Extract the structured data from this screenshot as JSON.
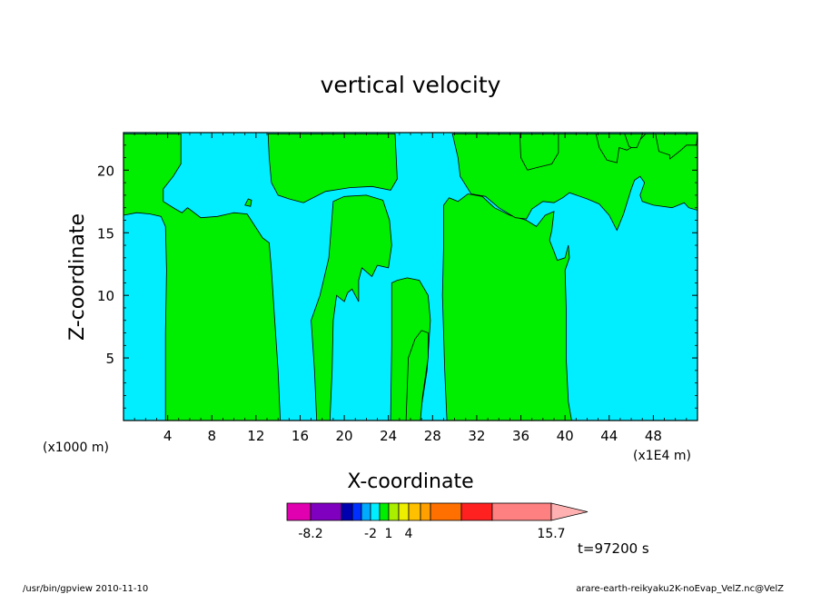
{
  "chart_data": {
    "type": "heatmap",
    "title": "vertical velocity",
    "xlabel": "X-coordinate",
    "ylabel": "Z-coordinate",
    "xlim": [
      0,
      52
    ],
    "ylim": [
      0,
      23
    ],
    "x_scale_label": "(x1000 m)",
    "x_scale_label_right": "(x1E4 m)",
    "x_ticks": [
      4,
      8,
      12,
      16,
      20,
      24,
      28,
      32,
      36,
      40,
      44,
      48
    ],
    "y_ticks": [
      5,
      10,
      15,
      20
    ],
    "background_color": "#00eeff",
    "positive_color": "#00ee00",
    "positive_regions": [
      {
        "points": [
          [
            0,
            16.4
          ],
          [
            1.2,
            16.6
          ],
          [
            2.4,
            16.5
          ],
          [
            3.4,
            16.3
          ],
          [
            3.8,
            15.5
          ],
          [
            3.9,
            12
          ],
          [
            3.8,
            7
          ],
          [
            3.8,
            0
          ],
          [
            14.2,
            0
          ],
          [
            14.0,
            4
          ],
          [
            13.7,
            8
          ],
          [
            13.4,
            12
          ],
          [
            13.2,
            14.2
          ],
          [
            12.6,
            14.6
          ],
          [
            11.2,
            16.5
          ],
          [
            10.0,
            16.6
          ],
          [
            8.5,
            16.3
          ],
          [
            7.0,
            16.2
          ],
          [
            5.8,
            17.0
          ],
          [
            5.3,
            16.6
          ],
          [
            4.7,
            16.9
          ],
          [
            3.6,
            17.5
          ],
          [
            3.6,
            18.5
          ],
          [
            4.5,
            19.5
          ],
          [
            5.2,
            20.5
          ],
          [
            5.2,
            22.9
          ],
          [
            0,
            22.9
          ]
        ]
      },
      {
        "points": [
          [
            13.1,
            22.9
          ],
          [
            13.2,
            21
          ],
          [
            13.4,
            19
          ],
          [
            14,
            18
          ],
          [
            15,
            17.7
          ],
          [
            16.3,
            17.4
          ],
          [
            18.3,
            18.3
          ],
          [
            20.5,
            18.6
          ],
          [
            22.5,
            18.7
          ],
          [
            24.2,
            18.4
          ],
          [
            24.8,
            19.3
          ],
          [
            24.6,
            22.9
          ]
        ]
      },
      {
        "points": [
          [
            17.5,
            0
          ],
          [
            17.3,
            4
          ],
          [
            17.0,
            8
          ],
          [
            17.8,
            10
          ],
          [
            18.6,
            13
          ],
          [
            19.0,
            17.5
          ],
          [
            20.0,
            17.9
          ],
          [
            22.0,
            18.0
          ],
          [
            23.5,
            17.6
          ],
          [
            24.1,
            16
          ],
          [
            24.3,
            14
          ],
          [
            24.0,
            12.2
          ],
          [
            23.0,
            12.4
          ],
          [
            22.5,
            11.5
          ],
          [
            21.6,
            12.2
          ],
          [
            21.3,
            11.2
          ],
          [
            21.3,
            9.5
          ],
          [
            20.7,
            10.5
          ],
          [
            20.3,
            10.2
          ],
          [
            20.0,
            9.5
          ],
          [
            19.3,
            10
          ],
          [
            19.0,
            8
          ],
          [
            18.9,
            4
          ],
          [
            18.7,
            0
          ]
        ]
      },
      {
        "points": [
          [
            24.2,
            0
          ],
          [
            24.3,
            6
          ],
          [
            24.3,
            11.0
          ],
          [
            24.8,
            11.2
          ],
          [
            25.7,
            11.4
          ],
          [
            26.8,
            11.2
          ],
          [
            27.6,
            10
          ],
          [
            27.8,
            8
          ],
          [
            27.5,
            4
          ],
          [
            26.8,
            0
          ]
        ]
      },
      {
        "points": [
          [
            25.6,
            0
          ],
          [
            25.8,
            5
          ],
          [
            26.4,
            6.5
          ],
          [
            27.0,
            7.2
          ],
          [
            27.6,
            7.0
          ],
          [
            27.6,
            5
          ],
          [
            27.1,
            2
          ],
          [
            26.9,
            0
          ]
        ]
      },
      {
        "points": [
          [
            29.3,
            0
          ],
          [
            29.1,
            4
          ],
          [
            28.9,
            10
          ],
          [
            29.0,
            14
          ],
          [
            29.0,
            17.2
          ],
          [
            29.5,
            17.8
          ],
          [
            30.3,
            17.5
          ],
          [
            31.2,
            18.1
          ],
          [
            32.5,
            17.9
          ],
          [
            33.6,
            17.0
          ],
          [
            35.0,
            16.4
          ],
          [
            36.5,
            16.0
          ],
          [
            37.4,
            15.5
          ],
          [
            38.2,
            16.4
          ],
          [
            39.0,
            16.7
          ],
          [
            38.8,
            15.2
          ],
          [
            38.6,
            14.4
          ],
          [
            39.0,
            13.5
          ],
          [
            39.3,
            12.8
          ],
          [
            40.0,
            13
          ],
          [
            40.3,
            14.0
          ],
          [
            40.4,
            13
          ],
          [
            40.0,
            12
          ],
          [
            40.1,
            9
          ],
          [
            40.1,
            5
          ],
          [
            40.3,
            1.5
          ],
          [
            40.6,
            0
          ]
        ]
      },
      {
        "points": [
          [
            29.8,
            22.9
          ],
          [
            30.3,
            21
          ],
          [
            30.5,
            19.5
          ],
          [
            31.5,
            18.1
          ],
          [
            32.8,
            17.9
          ],
          [
            34.0,
            17.0
          ],
          [
            35.5,
            16.2
          ],
          [
            36.5,
            16.1
          ],
          [
            37.0,
            16.9
          ],
          [
            38.0,
            17.5
          ],
          [
            39.0,
            17.4
          ],
          [
            39.8,
            17.8
          ],
          [
            40.4,
            18.2
          ],
          [
            42.0,
            17.7
          ],
          [
            43.1,
            17.3
          ],
          [
            44.0,
            16.4
          ],
          [
            44.7,
            15.2
          ],
          [
            45.3,
            16.5
          ],
          [
            46.0,
            18.5
          ],
          [
            46.3,
            19.2
          ],
          [
            46.8,
            19.5
          ],
          [
            47.2,
            19.0
          ],
          [
            46.8,
            18.0
          ],
          [
            47.0,
            17.5
          ],
          [
            48.0,
            17.2
          ],
          [
            49.7,
            17.0
          ],
          [
            50.8,
            17.4
          ],
          [
            51.2,
            17.0
          ],
          [
            52,
            16.8
          ],
          [
            52,
            22.9
          ]
        ]
      },
      {
        "points": [
          [
            35.9,
            22.9
          ],
          [
            36.0,
            21.0
          ],
          [
            36.6,
            20.0
          ],
          [
            37.4,
            20.2
          ],
          [
            38.8,
            20.5
          ],
          [
            39.4,
            21.4
          ],
          [
            39.4,
            22.9
          ]
        ]
      },
      {
        "points": [
          [
            42.8,
            22.9
          ],
          [
            43.1,
            21.8
          ],
          [
            43.8,
            20.8
          ],
          [
            44.7,
            20.6
          ],
          [
            44.9,
            21.8
          ],
          [
            45.6,
            21.6
          ],
          [
            46.2,
            21.9
          ],
          [
            47.3,
            22.9
          ]
        ]
      },
      {
        "points": [
          [
            45.4,
            22.9
          ],
          [
            45.8,
            21.9
          ],
          [
            46.0,
            21.8
          ],
          [
            46.5,
            21.8
          ],
          [
            46.9,
            22.6
          ],
          [
            47.0,
            22.9
          ]
        ]
      },
      {
        "points": [
          [
            48.2,
            22.9
          ],
          [
            48.5,
            21.5
          ],
          [
            49.5,
            21.2
          ],
          [
            49.5,
            20.9
          ],
          [
            50.5,
            21.6
          ],
          [
            51.0,
            22.0
          ],
          [
            51.9,
            22.0
          ],
          [
            52,
            22.9
          ]
        ]
      },
      {
        "points": [
          [
            11.0,
            17.2
          ],
          [
            11.3,
            17.7
          ],
          [
            11.6,
            17.6
          ],
          [
            11.5,
            17.1
          ]
        ]
      }
    ],
    "colorbar": {
      "colors": [
        "#e000b0",
        "#8000c0",
        "#0000b0",
        "#0030ff",
        "#00aaff",
        "#00eeff",
        "#00ee00",
        "#aaee00",
        "#eeee00",
        "#ffc000",
        "#ffa000",
        "#ff7000",
        "#ff2020",
        "#ff8080",
        "#ffb0b0"
      ],
      "tick_labels": [
        "-8.2",
        "-2",
        "1",
        "4",
        "15.7"
      ]
    },
    "time_label": "t=97200 s",
    "footer_left": "/usr/bin/gpview   2010-11-10",
    "footer_right": "arare-earth-reikyaku2K-noEvap_VelZ.nc@VelZ"
  }
}
